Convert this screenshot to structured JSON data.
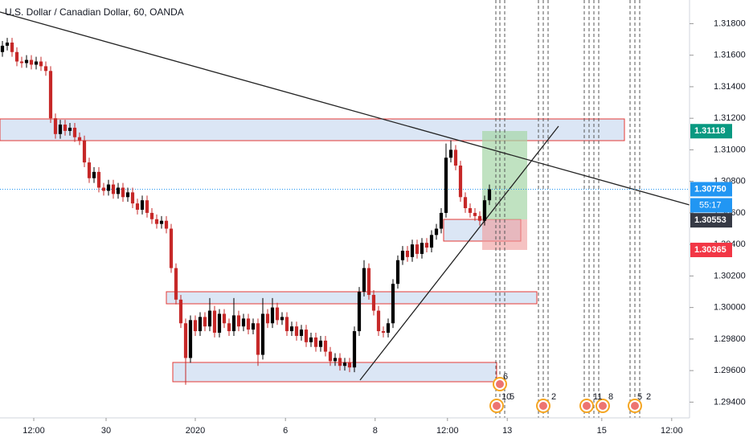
{
  "chart_data": {
    "type": "candlestick",
    "title": "U.S. Dollar / Canadian Dollar, 60, OANDA",
    "up_color": "#000000",
    "down_color": "#c62828",
    "open": [
      1.3162,
      1.3166,
      1.3168,
      1.3162,
      1.3156,
      1.3155,
      1.3157,
      1.3154,
      1.3156,
      1.3153,
      1.315,
      1.312,
      1.311,
      1.3116,
      1.3112,
      1.3114,
      1.3108,
      1.3106,
      1.3092,
      1.3082,
      1.3086,
      1.3076,
      1.3074,
      1.3078,
      1.3072,
      1.3076,
      1.307,
      1.3073,
      1.3066,
      1.3062,
      1.3068,
      1.306,
      1.3056,
      1.3053,
      1.3055,
      1.305,
      1.3025,
      1.3005,
      1.299,
      1.2968,
      1.2992,
      1.2985,
      1.2994,
      1.2988,
      1.2998,
      1.2984,
      1.2996,
      1.299,
      1.2985,
      1.2995,
      1.2988,
      1.2993,
      1.2986,
      1.299,
      1.297,
      1.2996,
      1.299,
      1.3,
      1.2992,
      1.2994,
      1.2985,
      1.2988,
      1.2982,
      1.2986,
      1.2978,
      1.2981,
      1.2975,
      1.2979,
      1.2972,
      1.2966,
      1.2968,
      1.2963,
      1.2965,
      1.2962,
      1.2985,
      1.301,
      1.3025,
      1.3008,
      1.2998,
      1.2985,
      1.2984,
      1.299,
      1.3015,
      1.303,
      1.3036,
      1.3032,
      1.304,
      1.3034,
      1.3041,
      1.3038,
      1.3046,
      1.305,
      1.306,
      1.3095,
      1.31,
      1.309,
      1.307,
      1.3063,
      1.306,
      1.3058,
      1.3055,
      1.3068
    ],
    "high": [
      1.3169,
      1.3171,
      1.3171,
      1.3165,
      1.3159,
      1.316,
      1.316,
      1.3159,
      1.3159,
      1.3156,
      1.3153,
      1.3123,
      1.3119,
      1.3119,
      1.3117,
      1.3117,
      1.3111,
      1.3109,
      1.3095,
      1.3089,
      1.3089,
      1.3079,
      1.3081,
      1.3081,
      1.3079,
      1.3079,
      1.3076,
      1.3076,
      1.3069,
      1.3071,
      1.3071,
      1.3063,
      1.3059,
      1.3058,
      1.3058,
      1.3053,
      1.3028,
      1.3008,
      1.2993,
      1.2995,
      1.2995,
      1.2997,
      1.2997,
      1.3006,
      1.3001,
      1.2999,
      1.2999,
      1.2993,
      1.3006,
      1.2998,
      1.2996,
      1.2996,
      1.2993,
      1.2993,
      1.3006,
      1.2999,
      1.3006,
      1.3003,
      1.2997,
      1.2997,
      1.2991,
      1.2991,
      1.2989,
      1.2989,
      1.2984,
      1.2984,
      1.2982,
      1.2982,
      1.2975,
      1.2971,
      1.2971,
      1.2968,
      1.2968,
      1.2988,
      1.3013,
      1.303,
      1.3028,
      1.3011,
      1.3001,
      1.2988,
      1.2993,
      1.3018,
      1.3033,
      1.3039,
      1.3039,
      1.3043,
      1.3043,
      1.3044,
      1.3044,
      1.3049,
      1.3053,
      1.3063,
      1.3104,
      1.3106,
      1.3103,
      1.3093,
      1.3073,
      1.3066,
      1.3063,
      1.3061,
      1.3071,
      1.3078
    ],
    "low": [
      1.3159,
      1.3163,
      1.3159,
      1.3153,
      1.3152,
      1.3152,
      1.3151,
      1.3151,
      1.315,
      1.3147,
      1.3117,
      1.3107,
      1.3107,
      1.3109,
      1.3109,
      1.3105,
      1.3103,
      1.3089,
      1.3079,
      1.3079,
      1.3073,
      1.3071,
      1.3071,
      1.3069,
      1.3069,
      1.3067,
      1.3067,
      1.3063,
      1.3059,
      1.3059,
      1.3057,
      1.3053,
      1.305,
      1.305,
      1.3047,
      1.3022,
      1.3002,
      1.2987,
      1.2951,
      1.2965,
      1.2982,
      1.2982,
      1.2985,
      1.2985,
      1.2981,
      1.2981,
      1.2987,
      1.2982,
      1.2982,
      1.2985,
      1.2985,
      1.2983,
      1.2983,
      1.2963,
      1.2967,
      1.2987,
      1.2987,
      1.2989,
      1.2989,
      1.2982,
      1.2982,
      1.2979,
      1.2979,
      1.2975,
      1.2975,
      1.2972,
      1.2972,
      1.2969,
      1.2963,
      1.2963,
      1.296,
      1.296,
      1.2959,
      1.2959,
      1.2982,
      1.3007,
      1.3005,
      1.2995,
      1.2982,
      1.2981,
      1.2981,
      1.2987,
      1.3012,
      1.3027,
      1.3029,
      1.3029,
      1.3031,
      1.3031,
      1.3035,
      1.3035,
      1.3043,
      1.3047,
      1.3057,
      1.3092,
      1.3087,
      1.3067,
      1.306,
      1.3057,
      1.3055,
      1.3052,
      1.3052,
      1.3065
    ],
    "close": [
      1.3166,
      1.3168,
      1.3162,
      1.3156,
      1.3155,
      1.3157,
      1.3154,
      1.3156,
      1.3153,
      1.315,
      1.312,
      1.311,
      1.3116,
      1.3112,
      1.3114,
      1.3108,
      1.3106,
      1.3092,
      1.3082,
      1.3086,
      1.3076,
      1.3074,
      1.3078,
      1.3072,
      1.3076,
      1.307,
      1.3073,
      1.3066,
      1.3062,
      1.3068,
      1.306,
      1.3056,
      1.3053,
      1.3055,
      1.305,
      1.3025,
      1.3005,
      1.299,
      1.2968,
      1.2992,
      1.2985,
      1.2994,
      1.2988,
      1.2998,
      1.2984,
      1.2996,
      1.299,
      1.2985,
      1.2995,
      1.2988,
      1.2993,
      1.2986,
      1.299,
      1.297,
      1.2996,
      1.299,
      1.3,
      1.2992,
      1.2994,
      1.2985,
      1.2988,
      1.2982,
      1.2986,
      1.2978,
      1.2981,
      1.2975,
      1.2979,
      1.2972,
      1.2966,
      1.2968,
      1.2963,
      1.2965,
      1.2962,
      1.2985,
      1.301,
      1.3025,
      1.3008,
      1.2998,
      1.2985,
      1.2984,
      1.299,
      1.3015,
      1.303,
      1.3036,
      1.3032,
      1.304,
      1.3034,
      1.3041,
      1.3038,
      1.3046,
      1.305,
      1.306,
      1.3095,
      1.31,
      1.309,
      1.307,
      1.3063,
      1.306,
      1.3058,
      1.3055,
      1.3068,
      1.3075
    ],
    "xlim": [
      -0.5,
      142.5
    ],
    "xticks": [
      {
        "value": 6.5,
        "label": "12:00"
      },
      {
        "value": 21.5,
        "label": "30"
      },
      {
        "value": 40,
        "label": "2020"
      },
      {
        "value": 58.7,
        "label": "6"
      },
      {
        "value": 77.3,
        "label": "8"
      },
      {
        "value": 92.3,
        "label": "12:00"
      },
      {
        "value": 104.7,
        "label": "13"
      },
      {
        "value": 124.3,
        "label": "15"
      },
      {
        "value": 138.8,
        "label": "12:00"
      }
    ],
    "ylim": [
      1.293,
      1.3195
    ],
    "yticks": [
      {
        "value": 1.294,
        "label": "1.29400"
      },
      {
        "value": 1.296,
        "label": "1.29600"
      },
      {
        "value": 1.298,
        "label": "1.29800"
      },
      {
        "value": 1.3,
        "label": "1.30000"
      },
      {
        "value": 1.302,
        "label": "1.30200"
      },
      {
        "value": 1.304,
        "label": "1.30400"
      },
      {
        "value": 1.306,
        "label": "1.30600"
      },
      {
        "value": 1.308,
        "label": "1.30800"
      },
      {
        "value": 1.31,
        "label": "1.31000"
      },
      {
        "value": 1.312,
        "label": "1.31200"
      },
      {
        "value": 1.314,
        "label": "1.31400"
      },
      {
        "value": 1.316,
        "label": "1.31600"
      },
      {
        "value": 1.318,
        "label": "1.31800"
      }
    ],
    "price_labels": [
      {
        "value": 1.31118,
        "label": "1.31118",
        "color": "#089981"
      },
      {
        "value": 1.3075,
        "label": "1.30750",
        "color": "#2196f3"
      },
      {
        "value": 1.30553,
        "label": "1.30553",
        "color": "#363a45"
      },
      {
        "value": 1.30365,
        "label": "1.30365",
        "color": "#f23645"
      }
    ],
    "countdown": "55:17",
    "event_labels": [
      "6",
      "10",
      "5",
      "2",
      "11",
      "8",
      "5",
      "2"
    ]
  }
}
